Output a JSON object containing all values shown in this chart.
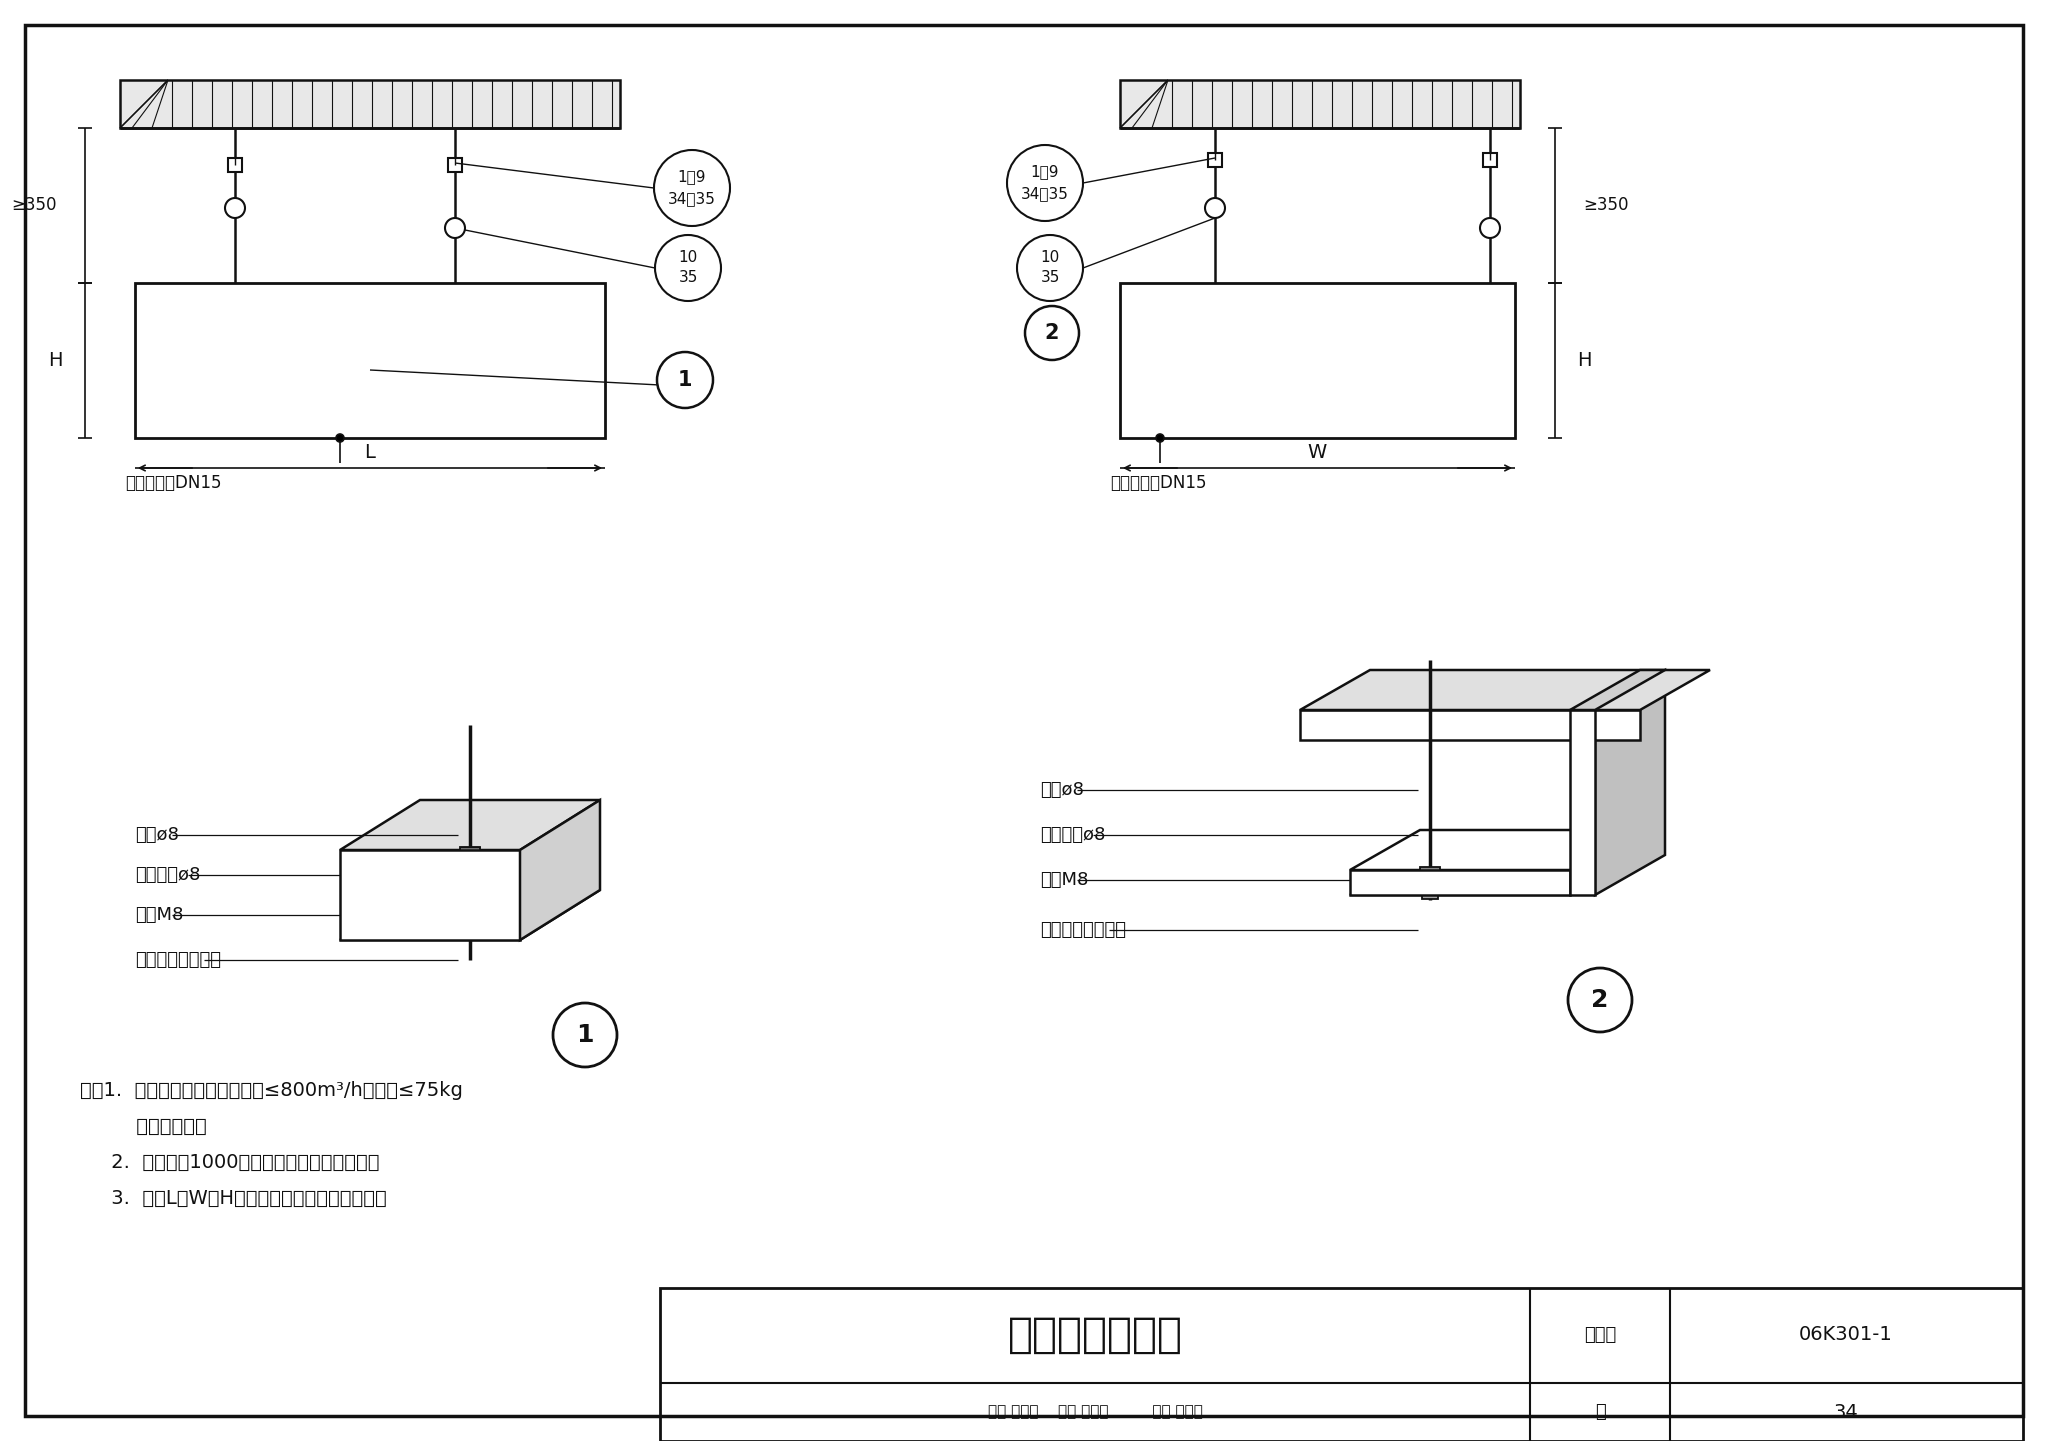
{
  "bg_color": "#ffffff",
  "line_color": "#111111",
  "title_main": "吊顶式板下吊装",
  "title_label": "图集号",
  "title_code": "06K301-1",
  "page_label": "页",
  "page_num": "34",
  "note_line1": "注：1.  本安装方式适用于新风量≤800m³/h，重量≤75kg",
  "note_line2": "         的所有机型。",
  "note_line3": "     2.  吊杆大于1000，应采取防止晃动的措施。",
  "note_line4": "     3.  图中L、W和H分别为机组长、宽和高尺寸。",
  "detail1_labels": [
    "吊杆ø8",
    "弹簧垫圈ø8",
    "螺母M8",
    "随机配备的吊装件"
  ],
  "detail2_labels": [
    "吊杆ø8",
    "弹簧垫圈ø8",
    "螺母M8",
    "随机配备的吊装件"
  ],
  "dim_350": "≥350",
  "dim_L": "L",
  "dim_W": "W",
  "dim_H": "H",
  "label_drain": "冷凝排水管DN15",
  "bubble1_top": "1～9",
  "bubble1_bot": "34～35",
  "bubble2_top": "10",
  "bubble2_bot": "35",
  "bubble3_text": "1",
  "bubble4_top": "1～9",
  "bubble4_bot": "34～35",
  "bubble5_top": "10",
  "bubble5_bot": "35",
  "bubble6_text": "2",
  "callout1": "1",
  "callout2": "2",
  "footer_text": "审核 李远学    校对 邹永庆              设计 宋长辉",
  "footer_sigs": "李远学   邹永庆   宋长辉"
}
